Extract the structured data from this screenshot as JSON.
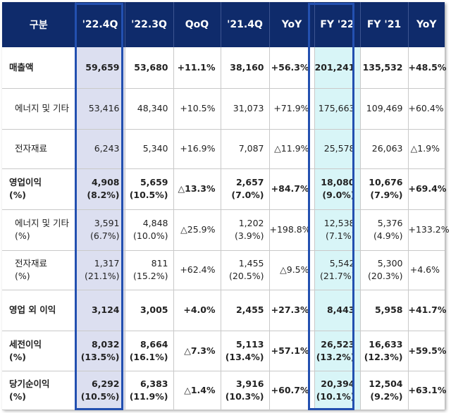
{
  "headers": [
    "구분",
    "'22.4Q",
    "'22.3Q",
    "QoQ",
    "'21.4Q",
    "YoY",
    "FY '22",
    "FY '21",
    "YoY"
  ],
  "rows": [
    {
      "type": "major",
      "h": 58,
      "label": [
        "매출액"
      ],
      "cells": [
        [
          "59,659"
        ],
        [
          "53,680"
        ],
        [
          "+11.1%"
        ],
        [
          "38,160"
        ],
        [
          "+56.3%"
        ],
        [
          "201,241"
        ],
        [
          "135,532"
        ],
        [
          "+48.5%"
        ]
      ]
    },
    {
      "type": "minor",
      "h": 58,
      "label": [
        "에너지 및 기타"
      ],
      "cells": [
        [
          "53,416"
        ],
        [
          "48,340"
        ],
        [
          "+10.5%"
        ],
        [
          "31,073"
        ],
        [
          "+71.9%"
        ],
        [
          "175,663"
        ],
        [
          "109,469"
        ],
        [
          "+60.4%"
        ]
      ]
    },
    {
      "type": "minor",
      "h": 56,
      "label": [
        "전자재료"
      ],
      "cells": [
        [
          "6,243"
        ],
        [
          "5,340"
        ],
        [
          "+16.9%"
        ],
        [
          "7,087"
        ],
        [
          "△11.9%"
        ],
        [
          "25,578"
        ],
        [
          "26,063"
        ],
        [
          "△1.9%"
        ]
      ]
    },
    {
      "type": "major",
      "h": 58,
      "label": [
        "영업이익",
        "(%)"
      ],
      "cells": [
        [
          "4,908",
          "(8.2%)"
        ],
        [
          "5,659",
          "(10.5%)"
        ],
        [
          "△13.3%"
        ],
        [
          "2,657",
          "(7.0%)"
        ],
        [
          "+84.7%"
        ],
        [
          "18,080",
          "(9.0%)"
        ],
        [
          "10,676",
          "(7.9%)"
        ],
        [
          "+69.4%"
        ]
      ]
    },
    {
      "type": "minor",
      "h": 58,
      "label": [
        "에너지 및 기타",
        "(%)"
      ],
      "cells": [
        [
          "3,591",
          "(6.7%)"
        ],
        [
          "4,848",
          "(10.0%)"
        ],
        [
          "△25.9%"
        ],
        [
          "1,202",
          "(3.9%)"
        ],
        [
          "+198.8%"
        ],
        [
          "12,538",
          "(7.1%)"
        ],
        [
          "5,376",
          "(4.9%)"
        ],
        [
          "+133.2%"
        ]
      ]
    },
    {
      "type": "minor",
      "h": 56,
      "label": [
        "전자재료",
        "(%)"
      ],
      "cells": [
        [
          "1,317",
          "(21.1%)"
        ],
        [
          "811",
          "(15.2%)"
        ],
        [
          "+62.4%"
        ],
        [
          "1,455",
          "(20.5%)"
        ],
        [
          "△9.5%"
        ],
        [
          "5,542",
          "(21.7%)"
        ],
        [
          "5,300",
          "(20.3%)"
        ],
        [
          "+4.6%"
        ]
      ]
    },
    {
      "type": "major",
      "h": 58,
      "label": [
        "영업 외 이익"
      ],
      "cells": [
        [
          "3,124"
        ],
        [
          "3,005"
        ],
        [
          "+4.0%"
        ],
        [
          "2,455"
        ],
        [
          "+27.3%"
        ],
        [
          "8,443"
        ],
        [
          "5,958"
        ],
        [
          "+41.7%"
        ]
      ]
    },
    {
      "type": "major",
      "h": 57,
      "label": [
        "세전이익",
        "(%)"
      ],
      "cells": [
        [
          "8,032",
          "(13.5%)"
        ],
        [
          "8,664",
          "(16.1%)"
        ],
        [
          "△7.3%"
        ],
        [
          "5,113",
          "(13.4%)"
        ],
        [
          "+57.1%"
        ],
        [
          "26,523",
          "(13.2%)"
        ],
        [
          "16,633",
          "(12.3%)"
        ],
        [
          "+59.5%"
        ]
      ]
    },
    {
      "type": "major",
      "h": 55,
      "label": [
        "당기순이익",
        "(%)"
      ],
      "cells": [
        [
          "6,292",
          "(10.5%)"
        ],
        [
          "6,383",
          "(11.9%)"
        ],
        [
          "△1.4%"
        ],
        [
          "3,916",
          "(10.3%)"
        ],
        [
          "+60.7%"
        ],
        [
          "20,394",
          "(10.1%)"
        ],
        [
          "12,504",
          "(9.2%)"
        ],
        [
          "+63.1%"
        ]
      ]
    }
  ]
}
